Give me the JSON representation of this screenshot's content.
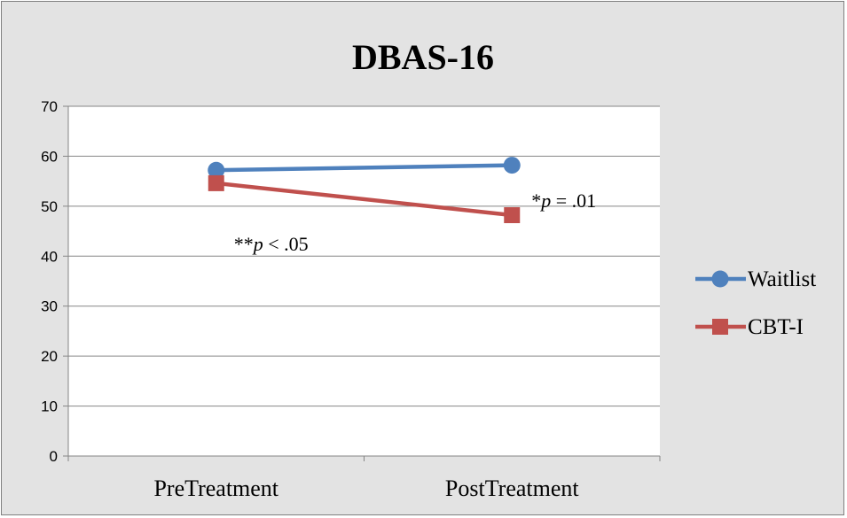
{
  "chart_data": {
    "type": "line",
    "title": "DBAS-16",
    "categories": [
      "PreTreatment",
      "PostTreatment"
    ],
    "ylim": [
      0,
      70
    ],
    "yticks": [
      0,
      10,
      20,
      30,
      40,
      50,
      60,
      70
    ],
    "grid": true,
    "legend_position": "right",
    "series": [
      {
        "name": "Waitlist",
        "values": [
          57.2,
          58.2
        ],
        "color": "#4f81bd",
        "marker": "circle"
      },
      {
        "name": "CBT-I",
        "values": [
          54.6,
          48.2
        ],
        "color": "#c0504d",
        "marker": "square"
      }
    ],
    "annotations": [
      {
        "prefix": "**",
        "italic": "p",
        "suffix": " < .05"
      },
      {
        "prefix": "*",
        "italic": "p",
        "suffix": " = .01"
      }
    ]
  }
}
